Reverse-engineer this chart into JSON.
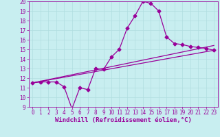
{
  "title": "",
  "xlabel": "Windchill (Refroidissement éolien,°C)",
  "ylabel": "",
  "bg_color": "#c8eef0",
  "line_color": "#990099",
  "xlim": [
    -0.5,
    23.5
  ],
  "ylim": [
    9,
    20
  ],
  "xtick_labels": [
    "0",
    "1",
    "2",
    "3",
    "4",
    "5",
    "6",
    "7",
    "8",
    "9",
    "10",
    "11",
    "12",
    "13",
    "14",
    "15",
    "16",
    "17",
    "18",
    "19",
    "20",
    "21",
    "22",
    "23"
  ],
  "xtick_pos": [
    0,
    1,
    2,
    3,
    4,
    5,
    6,
    7,
    8,
    9,
    10,
    11,
    12,
    13,
    14,
    15,
    16,
    17,
    18,
    19,
    20,
    21,
    22,
    23
  ],
  "yticks": [
    9,
    10,
    11,
    12,
    13,
    14,
    15,
    16,
    17,
    18,
    19,
    20
  ],
  "line1_x": [
    0,
    1,
    2,
    3,
    4,
    5,
    6,
    7,
    8,
    9,
    10,
    11,
    12,
    13,
    14,
    15,
    16,
    17,
    18,
    19,
    20,
    21,
    22,
    23
  ],
  "line1_y": [
    11.5,
    11.6,
    11.6,
    11.6,
    11.1,
    8.8,
    11.0,
    10.8,
    13.0,
    12.9,
    14.2,
    15.0,
    17.2,
    18.5,
    20.0,
    19.8,
    19.0,
    16.3,
    15.6,
    15.5,
    15.3,
    15.2,
    15.1,
    14.9
  ],
  "line2_x": [
    0,
    23
  ],
  "line2_y": [
    11.5,
    14.9
  ],
  "line3_x": [
    0,
    23
  ],
  "line3_y": [
    11.5,
    15.4
  ],
  "grid_color": "#b0dde0",
  "marker": "D",
  "markersize": 2.5,
  "linewidth": 0.9,
  "tick_fontsize": 5.5,
  "xlabel_fontsize": 6.5
}
